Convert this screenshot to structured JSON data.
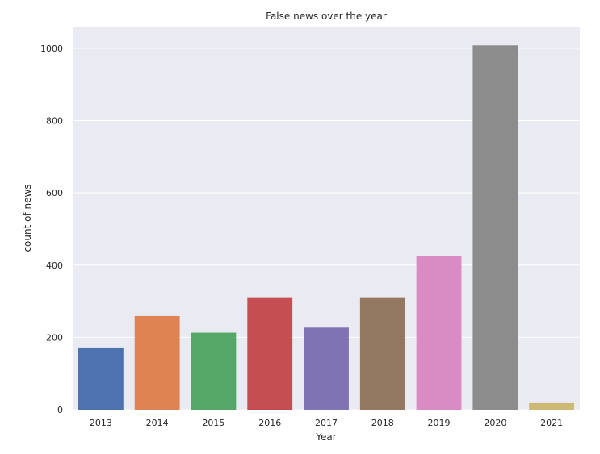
{
  "chart_data": {
    "type": "bar",
    "title": "False news over the year",
    "xlabel": "Year",
    "ylabel": "count of news",
    "categories": [
      "2013",
      "2014",
      "2015",
      "2016",
      "2017",
      "2018",
      "2019",
      "2020",
      "2021"
    ],
    "values": [
      172,
      259,
      213,
      311,
      227,
      311,
      426,
      1008,
      18
    ],
    "ylim": [
      0,
      1060
    ],
    "yticks": [
      0,
      200,
      400,
      600,
      800,
      1000
    ],
    "grid": true,
    "colors": [
      "#4c72b0",
      "#dd8452",
      "#55a868",
      "#c44e52",
      "#8172b3",
      "#937860",
      "#da8bc3",
      "#8c8c8c",
      "#ccb974"
    ],
    "background": "#eaeaf2"
  }
}
